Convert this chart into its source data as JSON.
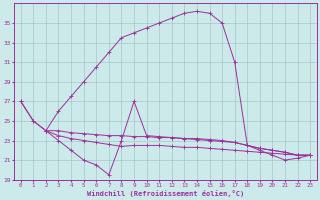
{
  "xlabel": "Windchill (Refroidissement éolien,°C)",
  "line_color": "#9b309b",
  "bg_color": "#cdeaea",
  "grid_color": "#9bbfbf",
  "xlim": [
    -0.5,
    23.5
  ],
  "ylim": [
    19,
    37
  ],
  "yticks": [
    19,
    21,
    23,
    25,
    27,
    29,
    31,
    33,
    35
  ],
  "xticks": [
    0,
    1,
    2,
    3,
    4,
    5,
    6,
    7,
    8,
    9,
    10,
    11,
    12,
    13,
    14,
    15,
    16,
    17,
    18,
    19,
    20,
    21,
    22,
    23
  ],
  "series": [
    {
      "x": [
        0,
        1,
        2,
        3,
        4,
        5,
        6,
        7,
        8,
        9,
        10,
        11,
        12,
        13,
        14,
        15,
        16,
        17,
        18,
        19,
        20,
        21,
        22,
        23
      ],
      "y": [
        27,
        25,
        24,
        26,
        27.5,
        29,
        30.5,
        32,
        33.5,
        34,
        34.5,
        35,
        35.5,
        36,
        36.2,
        36,
        35,
        31,
        22.5,
        22,
        21.5,
        21,
        21.2,
        21.5
      ]
    },
    {
      "x": [
        0,
        1,
        2,
        3,
        4,
        5,
        6,
        7,
        8,
        9,
        10,
        11,
        12,
        13,
        14,
        15,
        16,
        17,
        18,
        19,
        20,
        21,
        22,
        23
      ],
      "y": [
        27,
        25,
        24,
        24,
        23.8,
        23.7,
        23.6,
        23.5,
        23.5,
        23.4,
        23.4,
        23.3,
        23.3,
        23.2,
        23.2,
        23.1,
        23.0,
        22.8,
        22.5,
        22.2,
        22.0,
        21.8,
        21.5,
        21.5
      ]
    },
    {
      "x": [
        2,
        3,
        4,
        5,
        6,
        7,
        8,
        9,
        10,
        11,
        12,
        13,
        14,
        15,
        16,
        17,
        18,
        19,
        20,
        21,
        22,
        23
      ],
      "y": [
        24,
        23,
        22,
        21,
        20.5,
        19.5,
        23,
        27,
        23.5,
        23.4,
        23.3,
        23.2,
        23.1,
        23.0,
        22.9,
        22.8,
        22.5,
        22.2,
        22.0,
        21.8,
        21.5,
        21.5
      ]
    },
    {
      "x": [
        2,
        3,
        4,
        5,
        6,
        7,
        8,
        9,
        10,
        11,
        12,
        13,
        14,
        15,
        16,
        17,
        18,
        19,
        20,
        21,
        22,
        23
      ],
      "y": [
        24.0,
        23.5,
        23.2,
        23.0,
        22.8,
        22.6,
        22.4,
        22.5,
        22.5,
        22.5,
        22.4,
        22.3,
        22.3,
        22.2,
        22.1,
        22.0,
        21.9,
        21.8,
        21.7,
        21.6,
        21.5,
        21.5
      ]
    }
  ]
}
